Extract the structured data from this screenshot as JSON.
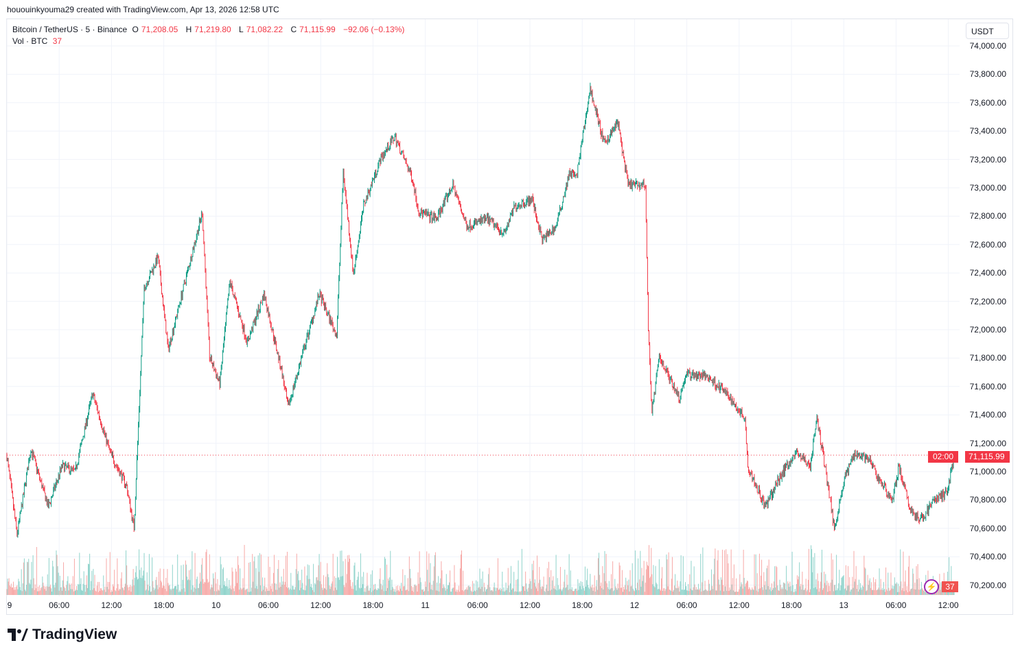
{
  "credit": "hououinkyouma29 created with TradingView.com, Apr 13, 2026 12:58 UTC",
  "legend": {
    "symbol": "Bitcoin / TetherUS · 5 · Binance",
    "open_label": "O",
    "open": "71,208.05",
    "high_label": "H",
    "high": "71,219.80",
    "low_label": "L",
    "low": "71,082.22",
    "close_label": "C",
    "close": "71,115.99",
    "change": "−92.06 (−0.13%)",
    "vol_label": "Vol · BTC",
    "vol": "37"
  },
  "currency": "USDT",
  "last_price": "71,115.99",
  "countdown": "02:00",
  "volume_badge": "37",
  "logo_text": "TradingView",
  "colors": {
    "up": "#089981",
    "down": "#f23645",
    "vol_up": "#8fd3cb",
    "vol_down": "#f7a9a7",
    "grid": "#f0f3fa"
  },
  "chart_data": {
    "type": "candlestick",
    "interval": "5",
    "ylim": [
      70150,
      74100
    ],
    "y_ticks": [
      "74,000.00",
      "73,800.00",
      "73,600.00",
      "73,400.00",
      "73,200.00",
      "73,000.00",
      "72,800.00",
      "72,600.00",
      "72,400.00",
      "72,200.00",
      "72,000.00",
      "71,800.00",
      "71,600.00",
      "71,400.00",
      "71,200.00",
      "71,000.00",
      "70,800.00",
      "70,600.00",
      "70,400.00",
      "70,200.00"
    ],
    "x_ticks": [
      "9",
      "06:00",
      "12:00",
      "18:00",
      "10",
      "06:00",
      "12:00",
      "18:00",
      "11",
      "06:00",
      "12:00",
      "18:00",
      "12",
      "06:00",
      "12:00",
      "18:00",
      "13",
      "06:00",
      "12:00"
    ],
    "last_price": 71115.99,
    "approx_close": [
      [
        "2026-04-09 00:00",
        71110
      ],
      [
        "2026-04-09 01:10",
        70555
      ],
      [
        "2026-04-09 02:45",
        71160
      ],
      [
        "2026-04-09 04:45",
        70750
      ],
      [
        "2026-04-09 06:20",
        71040
      ],
      [
        "2026-04-09 07:50",
        71000
      ],
      [
        "2026-04-09 09:50",
        71550
      ],
      [
        "2026-04-09 11:50",
        71135
      ],
      [
        "2026-04-09 13:45",
        70895
      ],
      [
        "2026-04-09 14:35",
        70600
      ],
      [
        "2026-04-09 15:45",
        72295
      ],
      [
        "2026-04-09 17:20",
        72510
      ],
      [
        "2026-04-09 18:30",
        71860
      ],
      [
        "2026-04-09 20:50",
        72440
      ],
      [
        "2026-04-09 22:25",
        72825
      ],
      [
        "2026-04-09 23:15",
        71810
      ],
      [
        "2026-04-10 00:25",
        71620
      ],
      [
        "2026-04-10 01:35",
        72340
      ],
      [
        "2026-04-10 03:35",
        71910
      ],
      [
        "2026-04-10 05:30",
        72250
      ],
      [
        "2026-04-10 07:30",
        71715
      ],
      [
        "2026-04-10 08:15",
        71450
      ],
      [
        "2026-04-10 09:50",
        71810
      ],
      [
        "2026-04-10 11:50",
        72250
      ],
      [
        "2026-04-10 13:50",
        71960
      ],
      [
        "2026-04-10 14:35",
        73115
      ],
      [
        "2026-04-10 15:45",
        72390
      ],
      [
        "2026-04-10 16:55",
        72875
      ],
      [
        "2026-04-10 18:55",
        73210
      ],
      [
        "2026-04-10 20:30",
        73360
      ],
      [
        "2026-04-10 22:30",
        73070
      ],
      [
        "2026-04-10 23:15",
        72830
      ],
      [
        "2026-04-11 01:15",
        72780
      ],
      [
        "2026-04-11 03:10",
        73020
      ],
      [
        "2026-04-11 04:45",
        72730
      ],
      [
        "2026-04-11 07:05",
        72780
      ],
      [
        "2026-04-11 09:05",
        72680
      ],
      [
        "2026-04-11 10:15",
        72870
      ],
      [
        "2026-04-11 12:15",
        72920
      ],
      [
        "2026-04-11 13:25",
        72630
      ],
      [
        "2026-04-11 15:00",
        72730
      ],
      [
        "2026-04-11 16:35",
        73115
      ],
      [
        "2026-04-11 17:20",
        73070
      ],
      [
        "2026-04-11 18:55",
        73700
      ],
      [
        "2026-04-11 20:30",
        73310
      ],
      [
        "2026-04-11 22:05",
        73460
      ],
      [
        "2026-04-11 23:15",
        73020
      ],
      [
        "2026-04-12 01:15",
        73020
      ],
      [
        "2026-04-12 01:35",
        72000
      ],
      [
        "2026-04-12 02:00",
        71420
      ],
      [
        "2026-04-12 02:50",
        71810
      ],
      [
        "2026-04-12 05:10",
        71520
      ],
      [
        "2026-04-12 05:55",
        71690
      ],
      [
        "2026-04-12 08:20",
        71670
      ],
      [
        "2026-04-12 10:15",
        71570
      ],
      [
        "2026-04-12 12:40",
        71380
      ],
      [
        "2026-04-12 13:00",
        71040
      ],
      [
        "2026-04-12 15:00",
        70750
      ],
      [
        "2026-04-12 17:00",
        71000
      ],
      [
        "2026-04-12 18:35",
        71135
      ],
      [
        "2026-04-12 20:10",
        71040
      ],
      [
        "2026-04-12 20:55",
        71380
      ],
      [
        "2026-04-12 22:05",
        70950
      ],
      [
        "2026-04-12 22:55",
        70600
      ],
      [
        "2026-04-13 00:05",
        70950
      ],
      [
        "2026-04-13 01:15",
        71135
      ],
      [
        "2026-04-13 02:50",
        71090
      ],
      [
        "2026-04-13 04:00",
        70950
      ],
      [
        "2026-04-13 05:35",
        70800
      ],
      [
        "2026-04-13 06:20",
        71040
      ],
      [
        "2026-04-13 07:30",
        70750
      ],
      [
        "2026-04-13 08:45",
        70650
      ],
      [
        "2026-04-13 10:20",
        70800
      ],
      [
        "2026-04-13 11:50",
        70850
      ],
      [
        "2026-04-13 12:40",
        71115.99
      ]
    ]
  }
}
